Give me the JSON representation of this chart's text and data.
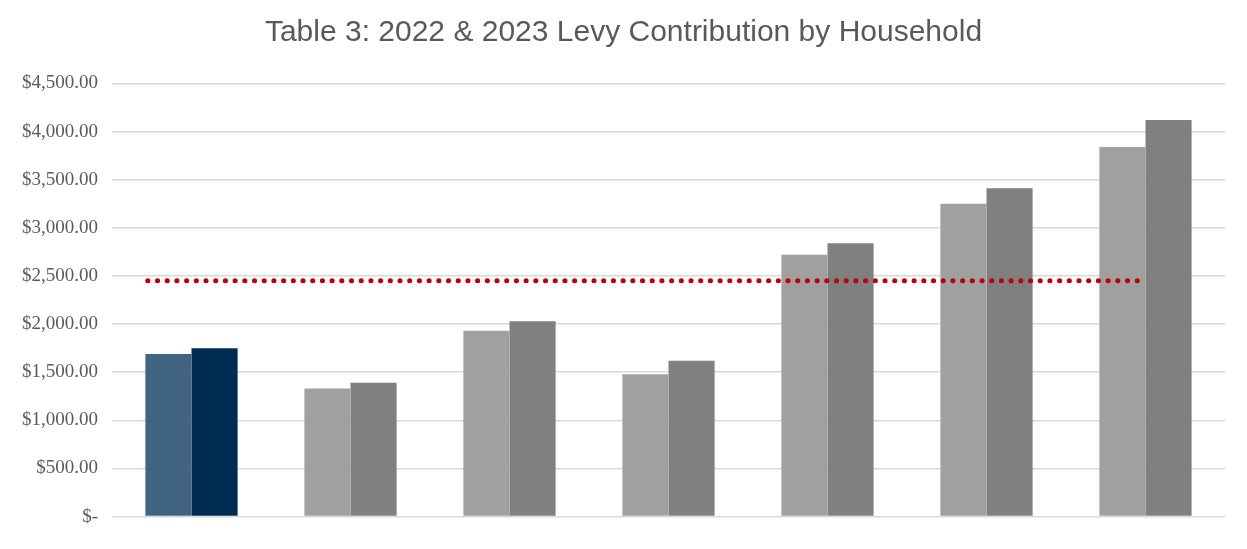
{
  "chart_data": {
    "type": "bar",
    "title": "Table 3: 2022 & 2023 Levy Contribution by Household",
    "categories": [
      null,
      null,
      null,
      null,
      null,
      null,
      null
    ],
    "series": [
      {
        "colors": [
          "#416482",
          "#a0a0a0",
          "#a0a0a0",
          "#a0a0a0",
          "#a0a0a0",
          "#a0a0a0",
          "#a0a0a0"
        ],
        "values": [
          1690,
          1330,
          1930,
          1480,
          2720,
          3250,
          3840
        ]
      },
      {
        "colors": [
          "#002b52",
          "#808080",
          "#808080",
          "#808080",
          "#808080",
          "#808080",
          "#808080"
        ],
        "values": [
          1750,
          1390,
          2030,
          1620,
          2840,
          3410,
          4120
        ]
      }
    ],
    "ylim": [
      0,
      4500
    ],
    "yticks": [
      {
        "value": 0,
        "label": "$-"
      },
      {
        "value": 500,
        "label": "$500.00"
      },
      {
        "value": 1000,
        "label": "$1,000.00"
      },
      {
        "value": 1500,
        "label": "$1,500.00"
      },
      {
        "value": 2000,
        "label": "$2,000.00"
      },
      {
        "value": 2500,
        "label": "$2,500.00"
      },
      {
        "value": 3000,
        "label": "$3,000.00"
      },
      {
        "value": 3500,
        "label": "$3,500.00"
      },
      {
        "value": 4000,
        "label": "$4,000.00"
      },
      {
        "value": 4500,
        "label": "$4,500.00"
      }
    ],
    "ref_lines": [
      {
        "axis": "y",
        "value": 2450,
        "color": "#c00000",
        "line_style": "dotted"
      }
    ],
    "grid": "y",
    "legend": false
  }
}
